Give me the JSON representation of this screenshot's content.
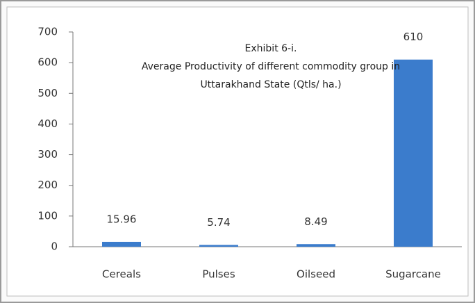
{
  "chart_data": {
    "type": "bar",
    "title": [
      "Exhibit 6-i.",
      "Average Productivity of different commodity group in",
      "Uttarakhand State (Qtls/ ha.)"
    ],
    "categories": [
      "Cereals",
      "Pulses",
      "Oilseed",
      "Sugarcane"
    ],
    "values": [
      15.96,
      5.74,
      8.49,
      610
    ],
    "color": "#3b7ccc",
    "ylim": [
      0,
      700
    ],
    "yticks": [
      0,
      100,
      200,
      300,
      400,
      500,
      600,
      700
    ],
    "grid": false
  }
}
